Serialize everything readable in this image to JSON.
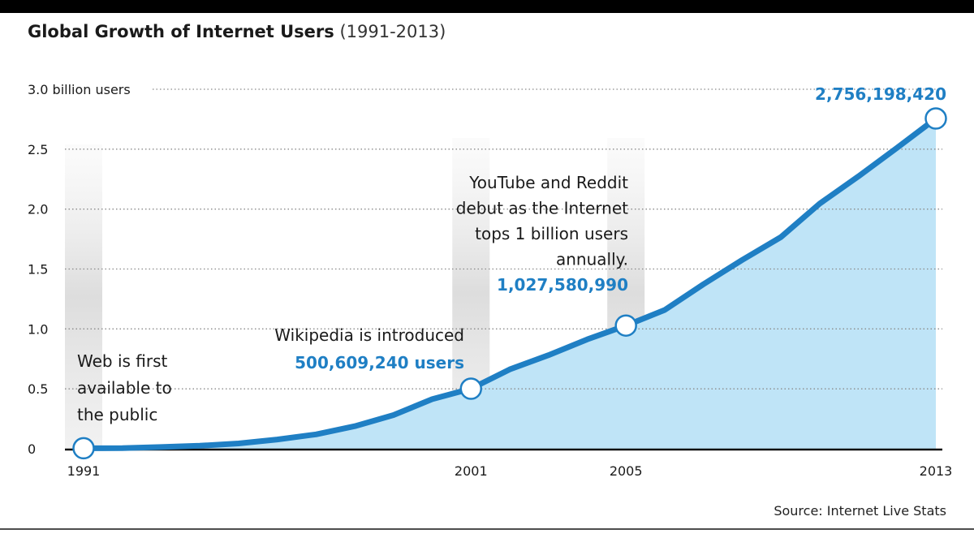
{
  "title": {
    "main": "Global Growth of Internet Users",
    "sub": "(1991-2013)"
  },
  "source": "Source: Internet Live Stats",
  "colors": {
    "line": "#1f7fc4",
    "area": "#bfe4f7",
    "value_text": "#1f7fc4",
    "grid": "#8a8a8a"
  },
  "chart_data": {
    "type": "area",
    "title": "Global Growth of Internet Users (1991-2013)",
    "xlabel": "",
    "ylabel": "",
    "xlim": [
      1991,
      2013
    ],
    "ylim": [
      0,
      3.0
    ],
    "x_ticks": [
      1991,
      2001,
      2005,
      2013
    ],
    "y_ticks": [
      {
        "value": 0,
        "label": "0"
      },
      {
        "value": 0.5,
        "label": "0.5"
      },
      {
        "value": 1.0,
        "label": "1.0"
      },
      {
        "value": 1.5,
        "label": "1.5"
      },
      {
        "value": 2.0,
        "label": "2.0"
      },
      {
        "value": 2.5,
        "label": "2.5"
      },
      {
        "value": 3.0,
        "label": "3.0 billion users"
      }
    ],
    "grid": "horizontal dotted",
    "series": [
      {
        "x": [
          1991,
          1992,
          1993,
          1994,
          1995,
          1996,
          1997,
          1998,
          1999,
          2000,
          2001,
          2002,
          2003,
          2004,
          2005,
          2006,
          2007,
          2008,
          2009,
          2010,
          2011,
          2012,
          2013
        ],
        "values": [
          0.004,
          0.005,
          0.014,
          0.025,
          0.044,
          0.077,
          0.12,
          0.188,
          0.281,
          0.414,
          0.501,
          0.662,
          0.781,
          0.913,
          1.028,
          1.158,
          1.373,
          1.575,
          1.766,
          2.045,
          2.273,
          2.512,
          2.756
        ]
      }
    ],
    "annotations": [
      {
        "x": 1991,
        "y": 0.004,
        "lines": [
          "Web is first",
          "available to",
          "the public"
        ],
        "value": ""
      },
      {
        "x": 2001,
        "y": 0.501,
        "lines": [
          "Wikipedia is introduced"
        ],
        "value": "500,609,240 users"
      },
      {
        "x": 2005,
        "y": 1.028,
        "lines": [
          "YouTube and Reddit",
          "debut as the Internet",
          "tops 1 billion users",
          "annually."
        ],
        "value": "1,027,580,990"
      },
      {
        "x": 2013,
        "y": 2.756,
        "lines": [],
        "value": "2,756,198,420"
      }
    ]
  }
}
